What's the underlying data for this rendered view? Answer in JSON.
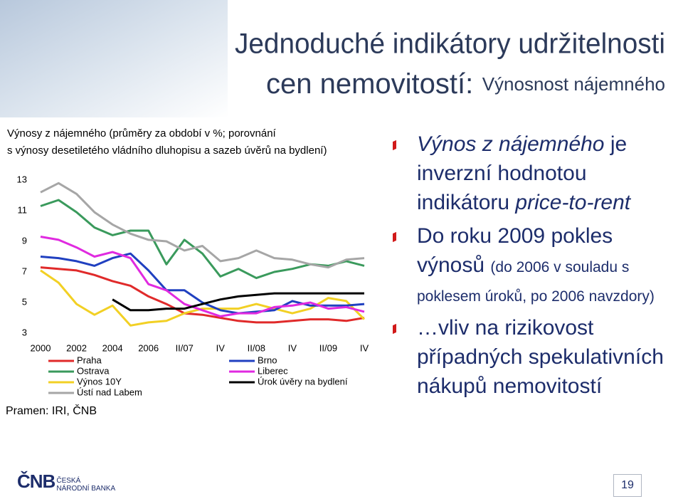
{
  "slide": {
    "title": [
      "Jednoduché indikátory udržitelnosti",
      "cen nemovitostí:"
    ],
    "title_suffix": "Výnosnost nájemného",
    "bullets": [
      [
        {
          "text": "Výnos z nájemného",
          "italic": true
        },
        {
          "text": "je inverzní hodnotou indikátoru"
        },
        {
          "text": "price-to-rent",
          "italic": true
        }
      ],
      [
        {
          "text": "Do roku 2009 pokles výnosů"
        },
        {
          "text": "(do 2006 v souladu s poklesem úroků, po 2006 navzdory)",
          "small": true
        }
      ],
      [
        {
          "text": "…vliv na rizikovost případných spekulativních nákupů nemovitostí"
        }
      ]
    ],
    "logo": {
      "mark": "ČNB",
      "name": [
        "ČESKÁ",
        "NÁRODNÍ BANKA"
      ]
    },
    "page_number": 19
  },
  "chart_data": {
    "type": "line",
    "title": [
      "Výnosy z nájemného (průměry za období v %; porovnání",
      "s výnosy desetiletého vládního dluhopisu a sazeb úvěrů na bydlení)"
    ],
    "source": "Pramen: IRI, ČNB",
    "categories": [
      "2000",
      null,
      "2002",
      null,
      "2004",
      null,
      "2006",
      null,
      "II/07",
      null,
      "IV",
      null,
      "II/08",
      null,
      "IV",
      null,
      "II/09",
      null,
      "IV"
    ],
    "ylim": [
      3,
      13
    ],
    "yticks": [
      3,
      5,
      7,
      9,
      11,
      13
    ],
    "grid": false,
    "legend": "bottom",
    "series": [
      {
        "name": "Praha",
        "color": "#e02a2a",
        "values": [
          7.3,
          7.2,
          7.1,
          6.8,
          6.4,
          6.1,
          5.4,
          4.9,
          4.3,
          4.2,
          4.0,
          3.8,
          3.7,
          3.7,
          3.8,
          3.9,
          3.9,
          3.8,
          4.0
        ]
      },
      {
        "name": "Ostrava",
        "color": "#3a9a5c",
        "values": [
          11.3,
          11.7,
          10.9,
          9.9,
          9.4,
          9.7,
          9.7,
          7.5,
          9.1,
          8.2,
          6.7,
          7.2,
          6.6,
          7.0,
          7.2,
          7.5,
          7.4,
          7.7,
          7.4
        ]
      },
      {
        "name": "Výnos 10Y",
        "color": "#f2d024",
        "values": [
          7.1,
          6.3,
          4.9,
          4.2,
          4.8,
          3.5,
          3.7,
          3.8,
          4.3,
          4.6,
          4.6,
          4.6,
          4.9,
          4.6,
          4.3,
          4.6,
          5.3,
          5.1,
          3.9
        ]
      },
      {
        "name": "Ústí nad Labem",
        "color": "#a6a6a6",
        "values": [
          12.2,
          12.8,
          12.1,
          10.9,
          10.1,
          9.5,
          9.1,
          9.0,
          8.4,
          8.7,
          7.7,
          7.9,
          8.4,
          7.9,
          7.8,
          7.5,
          7.3,
          7.8,
          7.9
        ]
      },
      {
        "name": "Brno",
        "color": "#2040c0",
        "values": [
          8.0,
          7.9,
          7.7,
          7.4,
          7.9,
          8.2,
          7.1,
          5.8,
          5.8,
          5.0,
          4.5,
          4.3,
          4.4,
          4.5,
          5.1,
          4.8,
          4.8,
          4.8,
          4.9
        ]
      },
      {
        "name": "Liberec",
        "color": "#e02ae0",
        "values": [
          9.3,
          9.1,
          8.6,
          8.0,
          8.3,
          7.9,
          6.2,
          5.8,
          4.9,
          4.5,
          4.1,
          4.3,
          4.3,
          4.7,
          4.8,
          5.0,
          4.6,
          4.7,
          4.4
        ]
      },
      {
        "name": "Úrok úvěry na bydlení",
        "color": "#000000",
        "values": [
          null,
          null,
          null,
          null,
          5.2,
          4.5,
          4.5,
          4.6,
          4.6,
          4.9,
          5.2,
          5.4,
          5.5,
          5.6,
          5.6,
          5.6,
          5.6,
          5.6,
          5.6
        ]
      }
    ]
  }
}
